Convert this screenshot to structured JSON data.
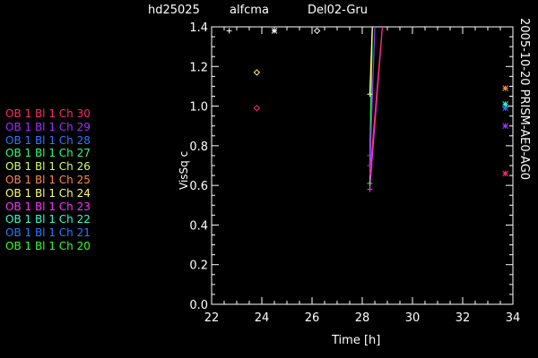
{
  "header": {
    "star": "hd25025",
    "calibrator": "alfcma",
    "baseline": "Del02-Gru"
  },
  "side_label": "2005-10-20 PRISM-AE0-AG0",
  "chart_data": {
    "type": "scatter",
    "xlabel": "Time [h]",
    "ylabel": "VisSq c",
    "xlim": [
      22,
      34
    ],
    "ylim": [
      0.0,
      1.4
    ],
    "xticks": [
      "22",
      "24",
      "26",
      "28",
      "30",
      "32",
      "34"
    ],
    "yticks": [
      "0.0",
      "0.2",
      "0.4",
      "0.6",
      "0.8",
      "1.0",
      "1.2",
      "1.4"
    ],
    "grid": false,
    "legend_position": "left",
    "series": [
      {
        "name": "OB 1 Bl 1 Ch 30",
        "color": "#ff2a6a"
      },
      {
        "name": "OB 1 Bl 1 Ch 29",
        "color": "#a030ff"
      },
      {
        "name": "OB 1 Bl 1 Ch 28",
        "color": "#2a7aff"
      },
      {
        "name": "OB 1 Bl 1 Ch 27",
        "color": "#30ff70"
      },
      {
        "name": "OB 1 Bl 1 Ch 26",
        "color": "#d4ff6a"
      },
      {
        "name": "OB 1 Bl 1 Ch 25",
        "color": "#ff8a4a"
      },
      {
        "name": "OB 1 Bl 1 Ch 24",
        "color": "#ffff6a"
      },
      {
        "name": "OB 1 Bl 1 Ch 23",
        "color": "#ff30ff"
      },
      {
        "name": "OB 1 Bl 1 Ch 22",
        "color": "#30ffd0"
      },
      {
        "name": "OB 1 Bl 1 Ch 21",
        "color": "#2a7aff"
      },
      {
        "name": "OB 1 Bl 1 Ch 20",
        "color": "#30ff30"
      }
    ],
    "points": [
      {
        "x": 22.7,
        "y": 1.38,
        "symbol": "+",
        "color": "#ffffff"
      },
      {
        "x": 24.5,
        "y": 1.38,
        "symbol": "*",
        "color": "#ffffff"
      },
      {
        "x": 26.2,
        "y": 1.38,
        "symbol": "diamond",
        "color": "#ffffff"
      },
      {
        "x": 23.8,
        "y": 1.17,
        "symbol": "diamond",
        "color": "#ffff6a"
      },
      {
        "x": 23.8,
        "y": 0.99,
        "symbol": "diamond",
        "color": "#ff2a6a"
      },
      {
        "x": 28.3,
        "y": 1.06,
        "symbol": "+",
        "color": "#ffff6a"
      },
      {
        "x": 28.3,
        "y": 0.75,
        "symbol": "+",
        "color": "#2a7aff"
      },
      {
        "x": 28.3,
        "y": 0.7,
        "symbol": "+",
        "color": "#a030ff"
      },
      {
        "x": 28.3,
        "y": 0.61,
        "symbol": "+",
        "color": "#30ff30"
      },
      {
        "x": 28.3,
        "y": 0.58,
        "symbol": "+",
        "color": "#ff30ff"
      },
      {
        "x": 33.7,
        "y": 1.09,
        "symbol": "*",
        "color": "#ff8a4a"
      },
      {
        "x": 33.7,
        "y": 1.01,
        "symbol": "*",
        "color": "#30ffd0"
      },
      {
        "x": 33.7,
        "y": 0.99,
        "symbol": "*",
        "color": "#2a7aff"
      },
      {
        "x": 33.7,
        "y": 0.9,
        "symbol": "*",
        "color": "#a030ff"
      },
      {
        "x": 33.7,
        "y": 0.66,
        "symbol": "*",
        "color": "#ff2a6a"
      }
    ],
    "lines": [
      {
        "x": [
          28.3,
          28.4
        ],
        "y": [
          0.7,
          1.4
        ],
        "color": "#30ffd0"
      },
      {
        "x": [
          28.3,
          28.4
        ],
        "y": [
          0.75,
          1.4
        ],
        "color": "#2a7aff"
      },
      {
        "x": [
          28.3,
          28.4
        ],
        "y": [
          0.61,
          1.4
        ],
        "color": "#30ff30"
      },
      {
        "x": [
          28.3,
          28.4
        ],
        "y": [
          1.06,
          1.4
        ],
        "color": "#ffff6a"
      },
      {
        "x": [
          28.3,
          28.8
        ],
        "y": [
          0.58,
          1.4
        ],
        "color": "#ff30ff"
      },
      {
        "x": [
          28.3,
          28.8
        ],
        "y": [
          0.65,
          1.4
        ],
        "color": "#ff2a6a"
      },
      {
        "x": [
          28.3,
          28.5
        ],
        "y": [
          0.68,
          1.4
        ],
        "color": "#a030ff"
      }
    ]
  }
}
